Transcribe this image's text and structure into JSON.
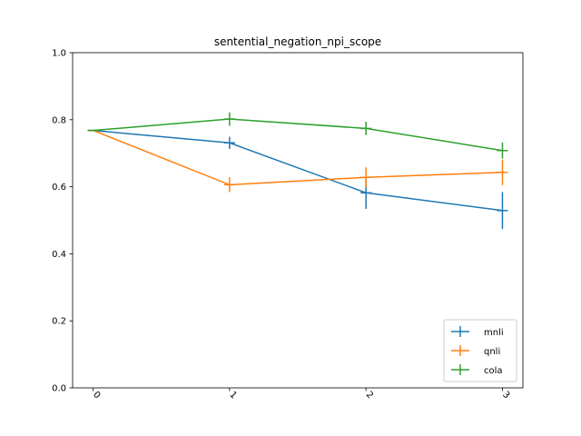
{
  "chart_data": {
    "type": "line",
    "title": "sentential_negation_npi_scope",
    "xlabel": "",
    "ylabel": "",
    "x": [
      0,
      1,
      2,
      3
    ],
    "x_tick_labels": [
      "0",
      "1",
      "2",
      "3"
    ],
    "x_tick_rotation_deg": 45,
    "ylim": [
      0.0,
      1.0
    ],
    "y_ticks": [
      0.0,
      0.2,
      0.4,
      0.6,
      0.8,
      1.0
    ],
    "y_tick_labels": [
      "0.0",
      "0.2",
      "0.4",
      "0.6",
      "0.8",
      "1.0"
    ],
    "grid": false,
    "legend_position": "lower-right",
    "series": [
      {
        "name": "mnli",
        "color": "#1f77b4",
        "values": [
          0.768,
          0.731,
          0.582,
          0.529
        ],
        "errors": [
          0.0,
          0.018,
          0.048,
          0.055
        ]
      },
      {
        "name": "qnli",
        "color": "#ff7f0e",
        "values": [
          0.768,
          0.606,
          0.628,
          0.643
        ],
        "errors": [
          0.0,
          0.022,
          0.03,
          0.038
        ]
      },
      {
        "name": "cola",
        "color": "#2ca02c",
        "values": [
          0.768,
          0.802,
          0.774,
          0.708
        ],
        "errors": [
          0.0,
          0.02,
          0.02,
          0.024
        ]
      }
    ]
  }
}
